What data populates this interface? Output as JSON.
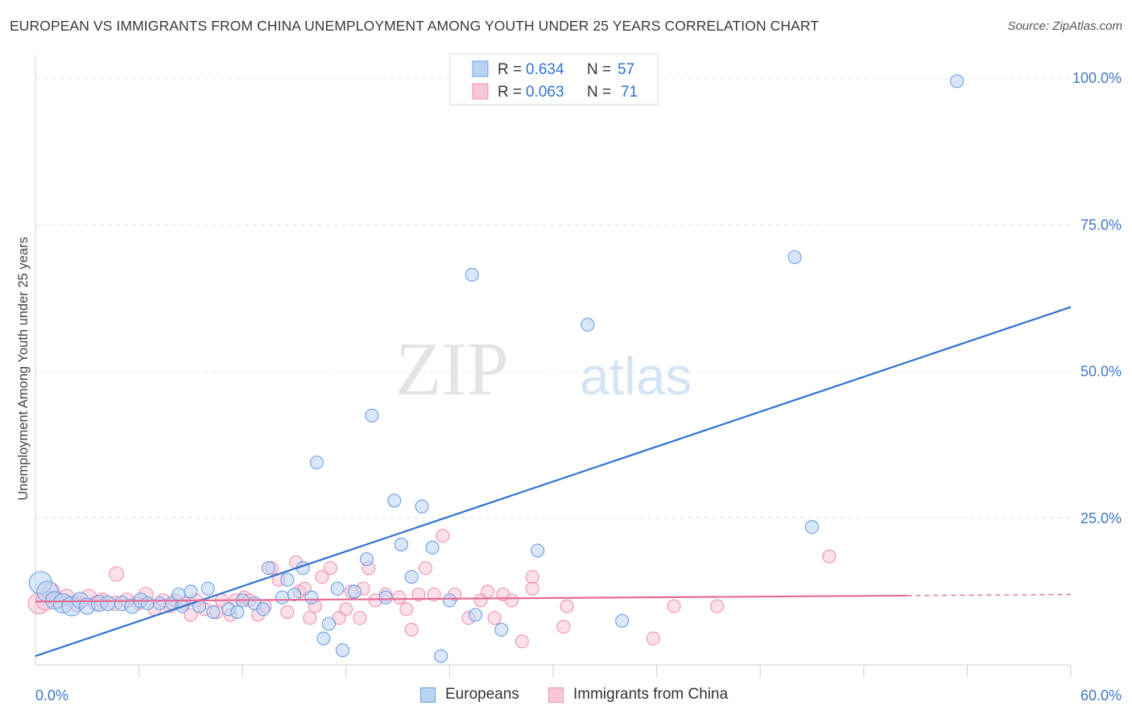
{
  "chart_data": {
    "type": "scatter",
    "title": "EUROPEAN VS IMMIGRANTS FROM CHINA UNEMPLOYMENT AMONG YOUTH UNDER 25 YEARS CORRELATION CHART",
    "source": "Source: ZipAtlas.com",
    "watermark": {
      "zip": "ZIP",
      "atlas": "atlas"
    },
    "ylabel": "Unemployment Among Youth under 25 years",
    "xlabel": "",
    "xlim": [
      0,
      60
    ],
    "ylim": [
      0,
      104
    ],
    "x_tick_labels": [
      {
        "value": 0,
        "label": "0.0%"
      },
      {
        "value": 60,
        "label": "60.0%"
      }
    ],
    "x_minor_ticks": [
      6,
      12,
      18,
      24,
      30,
      36,
      42,
      48,
      54,
      60
    ],
    "y_tick_labels": [
      {
        "value": 25,
        "label": "25.0%"
      },
      {
        "value": 50,
        "label": "50.0%"
      },
      {
        "value": 75,
        "label": "75.0%"
      },
      {
        "value": 100,
        "label": "100.0%"
      }
    ],
    "grid": true,
    "legend_position": "top-center",
    "stats": [
      {
        "r_label": "R = ",
        "r_value": "0.634",
        "n_label": "N = ",
        "n_value": "57"
      },
      {
        "r_label": "R = ",
        "r_value": "0.063",
        "n_label": "N = ",
        "n_value": "71"
      }
    ],
    "series": [
      {
        "name": "Europeans",
        "color": "#6a9fe0",
        "fill": "#b9d3f4",
        "line_color": "#2f72cf",
        "trend": {
          "x0": 0,
          "y0": 1.5,
          "x1": 60,
          "y1": 61,
          "solid_until": 60
        },
        "points": [
          [
            0.3,
            14,
            14
          ],
          [
            0.7,
            12.5,
            13
          ],
          [
            1.1,
            11,
            11
          ],
          [
            1.6,
            10.5,
            12
          ],
          [
            2.1,
            10,
            12
          ],
          [
            2.6,
            11,
            10
          ],
          [
            3.0,
            10,
            10
          ],
          [
            3.7,
            10.5,
            10
          ],
          [
            4.2,
            10.5,
            9
          ],
          [
            5.0,
            10.5,
            9
          ],
          [
            5.6,
            10,
            9
          ],
          [
            6.1,
            11,
            9
          ],
          [
            6.5,
            10.5,
            8
          ],
          [
            7.2,
            10.5,
            8
          ],
          [
            7.9,
            10.5,
            8
          ],
          [
            8.5,
            10,
            8
          ],
          [
            8.3,
            12,
            8
          ],
          [
            9.0,
            12.5,
            8
          ],
          [
            9.5,
            10,
            8
          ],
          [
            10.0,
            13,
            8
          ],
          [
            10.3,
            9,
            8
          ],
          [
            11.2,
            9.5,
            8
          ],
          [
            11.7,
            9,
            8
          ],
          [
            12.0,
            11,
            8
          ],
          [
            12.7,
            10.5,
            8
          ],
          [
            13.2,
            9.5,
            8
          ],
          [
            13.5,
            16.5,
            8
          ],
          [
            14.3,
            11.5,
            8
          ],
          [
            14.6,
            14.5,
            8
          ],
          [
            15.0,
            12,
            8
          ],
          [
            15.5,
            16.5,
            8
          ],
          [
            16.0,
            11.5,
            8
          ],
          [
            16.3,
            34.5,
            8
          ],
          [
            16.7,
            4.5,
            8
          ],
          [
            17.0,
            7,
            8
          ],
          [
            17.5,
            13,
            8
          ],
          [
            17.8,
            2.5,
            8
          ],
          [
            18.5,
            12.5,
            8
          ],
          [
            19.2,
            18,
            8
          ],
          [
            19.5,
            42.5,
            8
          ],
          [
            20.3,
            11.5,
            8
          ],
          [
            20.8,
            28,
            8
          ],
          [
            21.2,
            20.5,
            8
          ],
          [
            21.8,
            15,
            8
          ],
          [
            22.4,
            27,
            8
          ],
          [
            23.0,
            20,
            8
          ],
          [
            23.5,
            1.5,
            8
          ],
          [
            24.0,
            11,
            8
          ],
          [
            25.3,
            66.5,
            8
          ],
          [
            25.5,
            8.5,
            8
          ],
          [
            27.0,
            6,
            8
          ],
          [
            29.1,
            19.5,
            8
          ],
          [
            32.0,
            58,
            8
          ],
          [
            34.0,
            7.5,
            8
          ],
          [
            44.0,
            69.5,
            8
          ],
          [
            45.0,
            23.5,
            8
          ],
          [
            53.4,
            99.5,
            8
          ]
        ]
      },
      {
        "name": "Immigrants from China",
        "color": "#ee92b0",
        "fill": "#f8c7d7",
        "line_color": "#e56d95",
        "trend": {
          "x0": 0,
          "y0": 10.8,
          "x1": 60,
          "y1": 12,
          "solid_until": 50.5
        },
        "points": [
          [
            0.2,
            10.5,
            13
          ],
          [
            0.6,
            11,
            12
          ],
          [
            0.9,
            12.5,
            11
          ],
          [
            1.3,
            11,
            10
          ],
          [
            1.8,
            11.5,
            10
          ],
          [
            2.4,
            10.5,
            10
          ],
          [
            3.1,
            11.5,
            10
          ],
          [
            3.5,
            10.5,
            9
          ],
          [
            3.9,
            11,
            9
          ],
          [
            4.6,
            10.5,
            9
          ],
          [
            4.7,
            15.5,
            9
          ],
          [
            5.3,
            11,
            9
          ],
          [
            6.0,
            10.5,
            8
          ],
          [
            6.4,
            12,
            9
          ],
          [
            6.9,
            9.5,
            8
          ],
          [
            7.4,
            11,
            8
          ],
          [
            7.8,
            10,
            8
          ],
          [
            8.1,
            11,
            8
          ],
          [
            8.6,
            10.5,
            8
          ],
          [
            9.0,
            8.5,
            8
          ],
          [
            9.3,
            11,
            8
          ],
          [
            9.8,
            9.5,
            8
          ],
          [
            10.5,
            9,
            8
          ],
          [
            10.8,
            11,
            8
          ],
          [
            11.3,
            8.5,
            8
          ],
          [
            11.6,
            11,
            8
          ],
          [
            12.1,
            11.5,
            8
          ],
          [
            12.4,
            11,
            8
          ],
          [
            12.9,
            8.5,
            8
          ],
          [
            13.3,
            10,
            8
          ],
          [
            13.7,
            16.5,
            8
          ],
          [
            14.1,
            14.5,
            8
          ],
          [
            14.6,
            9,
            8
          ],
          [
            15.1,
            17.5,
            8
          ],
          [
            15.3,
            12.5,
            8
          ],
          [
            15.6,
            13,
            8
          ],
          [
            15.9,
            8,
            8
          ],
          [
            16.2,
            10,
            8
          ],
          [
            16.6,
            15,
            8
          ],
          [
            17.1,
            16.5,
            8
          ],
          [
            17.6,
            8,
            8
          ],
          [
            18.0,
            9.5,
            8
          ],
          [
            18.3,
            12.5,
            8
          ],
          [
            18.8,
            8,
            8
          ],
          [
            19.0,
            13,
            8
          ],
          [
            19.3,
            16.5,
            8
          ],
          [
            19.7,
            11,
            8
          ],
          [
            20.3,
            12,
            8
          ],
          [
            21.1,
            11.5,
            8
          ],
          [
            21.5,
            9.5,
            8
          ],
          [
            21.8,
            6,
            8
          ],
          [
            22.2,
            12,
            8
          ],
          [
            22.6,
            16.5,
            8
          ],
          [
            23.1,
            12,
            8
          ],
          [
            23.6,
            22,
            8
          ],
          [
            24.3,
            12,
            8
          ],
          [
            25.1,
            8,
            8
          ],
          [
            25.8,
            11,
            8
          ],
          [
            26.2,
            12.5,
            8
          ],
          [
            26.6,
            8,
            8
          ],
          [
            27.1,
            12,
            8
          ],
          [
            27.6,
            11,
            8
          ],
          [
            28.2,
            4,
            8
          ],
          [
            28.8,
            15,
            8
          ],
          [
            28.8,
            13,
            8
          ],
          [
            30.6,
            6.5,
            8
          ],
          [
            30.8,
            10,
            8
          ],
          [
            35.8,
            4.5,
            8
          ],
          [
            37.0,
            10,
            8
          ],
          [
            39.5,
            10,
            8
          ],
          [
            46.0,
            18.5,
            8
          ]
        ]
      }
    ]
  }
}
